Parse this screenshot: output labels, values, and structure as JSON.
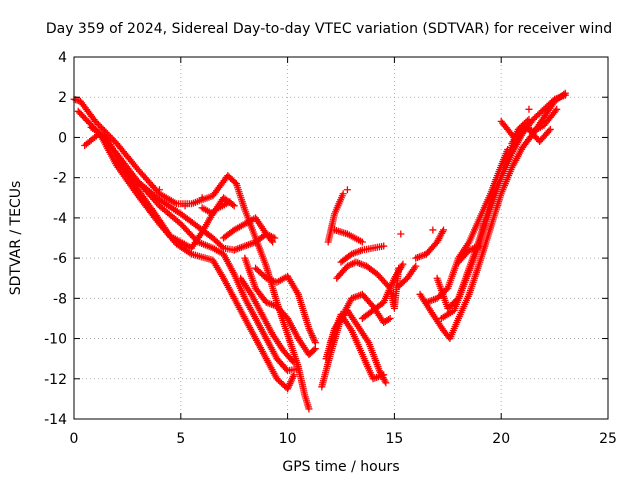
{
  "chart_data": {
    "type": "scatter",
    "title": "Day 359 of 2024, Sidereal Day-to-day VTEC variation (SDTVAR) for receiver wind",
    "xlabel": "GPS time / hours",
    "ylabel": "SDTVAR / TECUs",
    "xlim": [
      0,
      25
    ],
    "ylim": [
      -14,
      4
    ],
    "xticks": [
      "0",
      "5",
      "10",
      "15",
      "20",
      "25"
    ],
    "yticks": [
      "4",
      "2",
      "0",
      "-2",
      "-4",
      "-6",
      "-8",
      "-10",
      "-12",
      "-14"
    ],
    "grid": true,
    "legend": "none",
    "marker": "+",
    "color": "#ff0000",
    "tracks": [
      [
        [
          0.0,
          1.9
        ],
        [
          0.3,
          1.8
        ],
        [
          1.0,
          0.8
        ],
        [
          2.0,
          -0.3
        ],
        [
          3.0,
          -1.6
        ],
        [
          4.0,
          -2.8
        ],
        [
          4.8,
          -3.3
        ],
        [
          5.5,
          -3.3
        ],
        [
          6.5,
          -2.9
        ],
        [
          7.2,
          -1.9
        ],
        [
          7.6,
          -2.3
        ]
      ],
      [
        [
          7.6,
          -2.3
        ],
        [
          8.0,
          -3.6
        ],
        [
          8.5,
          -5.0
        ],
        [
          9.0,
          -6.4
        ],
        [
          9.5,
          -8.2
        ],
        [
          10.0,
          -9.8
        ],
        [
          10.5,
          -11.4
        ],
        [
          10.8,
          -12.8
        ],
        [
          11.0,
          -13.5
        ]
      ],
      [
        [
          0.2,
          1.3
        ],
        [
          1.0,
          0.4
        ],
        [
          2.0,
          -0.8
        ],
        [
          3.0,
          -2.2
        ],
        [
          4.0,
          -3.4
        ],
        [
          5.0,
          -4.3
        ],
        [
          5.8,
          -5.2
        ],
        [
          6.5,
          -5.5
        ],
        [
          7.0,
          -5.8
        ],
        [
          7.5,
          -6.8
        ],
        [
          8.0,
          -8.0
        ],
        [
          8.5,
          -9.0
        ],
        [
          9.0,
          -10.0
        ],
        [
          9.5,
          -11.0
        ],
        [
          10.0,
          -11.6
        ],
        [
          10.5,
          -11.5
        ]
      ],
      [
        [
          0.5,
          -0.4
        ],
        [
          1.2,
          0.2
        ],
        [
          2.0,
          -1.4
        ],
        [
          3.0,
          -2.9
        ],
        [
          4.0,
          -4.3
        ],
        [
          4.8,
          -5.3
        ],
        [
          5.5,
          -5.8
        ],
        [
          6.5,
          -6.1
        ],
        [
          7.0,
          -7.0
        ],
        [
          7.5,
          -8.0
        ],
        [
          8.0,
          -9.0
        ],
        [
          8.5,
          -10.0
        ],
        [
          9.0,
          -11.0
        ],
        [
          9.5,
          -12.0
        ],
        [
          10.0,
          -12.5
        ],
        [
          10.3,
          -11.8
        ]
      ],
      [
        [
          0.8,
          0.5
        ],
        [
          1.5,
          0.0
        ],
        [
          2.0,
          -0.9
        ],
        [
          3.0,
          -2.6
        ],
        [
          3.8,
          -3.8
        ],
        [
          4.5,
          -4.9
        ],
        [
          5.5,
          -5.5
        ],
        [
          6.0,
          -4.7
        ],
        [
          6.6,
          -3.6
        ],
        [
          7.3,
          -3.2
        ]
      ],
      [
        [
          2.0,
          -1.2
        ],
        [
          3.0,
          -2.2
        ],
        [
          4.0,
          -3.1
        ],
        [
          5.0,
          -3.8
        ],
        [
          6.0,
          -4.6
        ],
        [
          6.5,
          -5.0
        ],
        [
          7.0,
          -5.5
        ],
        [
          7.5,
          -5.6
        ]
      ],
      [
        [
          7.5,
          -5.6
        ],
        [
          8.0,
          -5.4
        ],
        [
          8.5,
          -5.2
        ],
        [
          9.0,
          -4.8
        ],
        [
          9.4,
          -5.0
        ]
      ],
      [
        [
          7.0,
          -5.0
        ],
        [
          7.5,
          -4.6
        ],
        [
          8.0,
          -4.3
        ],
        [
          8.5,
          -4.0
        ],
        [
          9.0,
          -4.8
        ],
        [
          9.3,
          -5.2
        ]
      ],
      [
        [
          6.0,
          -3.5
        ],
        [
          6.5,
          -3.8
        ],
        [
          7.0,
          -3.0
        ],
        [
          7.5,
          -3.4
        ]
      ],
      [
        [
          8.0,
          -6.0
        ],
        [
          8.5,
          -7.5
        ],
        [
          9.0,
          -8.2
        ],
        [
          9.5,
          -8.4
        ],
        [
          10.0,
          -9.0
        ],
        [
          10.5,
          -10.0
        ],
        [
          11.0,
          -10.8
        ],
        [
          11.3,
          -10.5
        ]
      ],
      [
        [
          8.5,
          -6.5
        ],
        [
          9.0,
          -7.0
        ],
        [
          9.5,
          -7.2
        ],
        [
          10.0,
          -6.9
        ],
        [
          10.5,
          -7.8
        ],
        [
          11.0,
          -9.5
        ],
        [
          11.3,
          -10.2
        ]
      ],
      [
        [
          7.8,
          -7.0
        ],
        [
          8.3,
          -7.8
        ],
        [
          8.8,
          -8.8
        ],
        [
          9.3,
          -9.8
        ],
        [
          9.8,
          -10.6
        ],
        [
          10.3,
          -11.2
        ]
      ],
      [
        [
          11.6,
          -12.4
        ],
        [
          12.0,
          -10.8
        ],
        [
          12.5,
          -9.0
        ],
        [
          13.0,
          -8.0
        ],
        [
          13.5,
          -7.8
        ],
        [
          14.0,
          -8.4
        ],
        [
          14.5,
          -9.2
        ],
        [
          14.8,
          -9.0
        ]
      ],
      [
        [
          11.8,
          -11.0
        ],
        [
          12.2,
          -9.5
        ],
        [
          12.8,
          -8.6
        ],
        [
          13.3,
          -9.4
        ],
        [
          13.8,
          -10.2
        ],
        [
          14.3,
          -11.6
        ],
        [
          14.6,
          -12.2
        ]
      ],
      [
        [
          12.0,
          -10.2
        ],
        [
          12.5,
          -8.8
        ],
        [
          13.0,
          -9.6
        ],
        [
          13.5,
          -10.8
        ],
        [
          14.0,
          -12.0
        ],
        [
          14.5,
          -11.8
        ]
      ],
      [
        [
          11.9,
          -5.2
        ],
        [
          12.2,
          -3.8
        ],
        [
          12.6,
          -2.8
        ]
      ],
      [
        [
          12.3,
          -7.0
        ],
        [
          12.8,
          -6.4
        ],
        [
          13.2,
          -6.2
        ],
        [
          13.7,
          -6.4
        ],
        [
          14.2,
          -6.8
        ],
        [
          14.8,
          -7.5
        ],
        [
          15.0,
          -8.5
        ],
        [
          15.2,
          -6.5
        ]
      ],
      [
        [
          12.5,
          -6.2
        ],
        [
          13.0,
          -5.8
        ],
        [
          13.5,
          -5.6
        ],
        [
          14.0,
          -5.5
        ],
        [
          14.5,
          -5.4
        ]
      ],
      [
        [
          13.5,
          -9.0
        ],
        [
          14.0,
          -8.6
        ],
        [
          14.5,
          -8.2
        ],
        [
          15.0,
          -7.0
        ],
        [
          15.4,
          -6.3
        ]
      ],
      [
        [
          12.2,
          -4.6
        ],
        [
          12.8,
          -4.8
        ],
        [
          13.5,
          -5.2
        ]
      ],
      [
        [
          16.0,
          -6.0
        ],
        [
          16.5,
          -5.8
        ],
        [
          17.0,
          -5.2
        ],
        [
          17.3,
          -4.6
        ]
      ],
      [
        [
          16.2,
          -7.8
        ],
        [
          16.8,
          -8.8
        ],
        [
          17.3,
          -9.6
        ],
        [
          17.6,
          -10.0
        ],
        [
          18.0,
          -9.0
        ],
        [
          18.5,
          -7.8
        ],
        [
          19.0,
          -6.2
        ],
        [
          19.5,
          -4.5
        ],
        [
          20.0,
          -2.8
        ],
        [
          20.5,
          -1.5
        ],
        [
          21.0,
          -0.5
        ],
        [
          21.5,
          0.2
        ],
        [
          22.0,
          1.0
        ],
        [
          22.5,
          1.8
        ],
        [
          23.0,
          2.2
        ]
      ],
      [
        [
          17.0,
          -7.0
        ],
        [
          17.5,
          -8.5
        ],
        [
          18.0,
          -8.0
        ],
        [
          18.5,
          -6.5
        ],
        [
          19.0,
          -5.0
        ],
        [
          19.5,
          -3.2
        ],
        [
          20.0,
          -2.0
        ],
        [
          20.5,
          -0.8
        ],
        [
          21.0,
          0.2
        ],
        [
          21.5,
          0.9
        ],
        [
          22.0,
          1.4
        ],
        [
          22.5,
          1.9
        ],
        [
          23.0,
          2.1
        ]
      ],
      [
        [
          16.5,
          -8.2
        ],
        [
          17.0,
          -8.0
        ],
        [
          17.5,
          -7.5
        ],
        [
          18.0,
          -6.0
        ],
        [
          18.5,
          -5.2
        ],
        [
          19.0,
          -4.0
        ],
        [
          19.5,
          -2.8
        ],
        [
          20.0,
          -1.4
        ],
        [
          20.3,
          -0.6
        ]
      ],
      [
        [
          17.2,
          -9.0
        ],
        [
          17.8,
          -8.6
        ],
        [
          18.3,
          -7.2
        ],
        [
          18.8,
          -5.8
        ],
        [
          19.3,
          -4.2
        ],
        [
          19.8,
          -2.6
        ],
        [
          20.3,
          -1.0
        ],
        [
          20.8,
          0.4
        ],
        [
          21.3,
          0.9
        ]
      ],
      [
        [
          15.2,
          -7.4
        ],
        [
          15.6,
          -7.0
        ],
        [
          16.0,
          -6.4
        ]
      ],
      [
        [
          18.0,
          -6.2
        ],
        [
          18.5,
          -5.6
        ],
        [
          19.0,
          -5.4
        ],
        [
          19.2,
          -4.2
        ]
      ],
      [
        [
          20.5,
          -0.3
        ],
        [
          21.0,
          0.6
        ],
        [
          21.5,
          0.3
        ],
        [
          22.0,
          0.6
        ],
        [
          22.6,
          1.4
        ]
      ],
      [
        [
          20.0,
          0.8
        ],
        [
          20.6,
          0.0
        ],
        [
          21.2,
          0.5
        ],
        [
          21.8,
          -0.2
        ],
        [
          22.3,
          0.4
        ]
      ]
    ],
    "points": [
      [
        15.3,
        -4.8
      ],
      [
        12.8,
        -2.6
      ],
      [
        21.3,
        1.4
      ],
      [
        6.0,
        -3.0
      ],
      [
        5.2,
        -3.4
      ],
      [
        4.0,
        -2.6
      ],
      [
        16.8,
        -4.6
      ]
    ]
  }
}
